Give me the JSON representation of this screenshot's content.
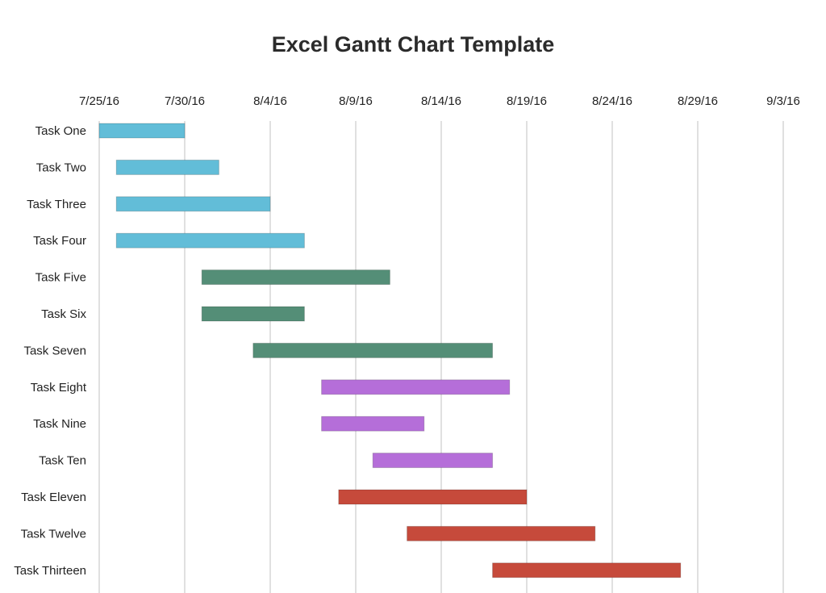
{
  "chart_data": {
    "type": "bar",
    "subtype": "gantt",
    "title": "Excel Gantt Chart Template",
    "x_axis_position": "top",
    "x_ticks": [
      "7/25/16",
      "7/30/16",
      "8/4/16",
      "8/9/16",
      "8/14/16",
      "8/19/16",
      "8/24/16",
      "8/29/16",
      "9/3/16"
    ],
    "xlim": [
      "7/25/16",
      "9/4/16"
    ],
    "grid": true,
    "tasks": [
      {
        "name": "Task One",
        "start": "7/25/16",
        "end": "7/30/16",
        "color": "#62bdd8"
      },
      {
        "name": "Task Two",
        "start": "7/26/16",
        "end": "8/1/16",
        "color": "#62bdd8"
      },
      {
        "name": "Task Three",
        "start": "7/26/16",
        "end": "8/4/16",
        "color": "#62bdd8"
      },
      {
        "name": "Task Four",
        "start": "7/26/16",
        "end": "8/6/16",
        "color": "#62bdd8"
      },
      {
        "name": "Task Five",
        "start": "7/31/16",
        "end": "8/11/16",
        "color": "#548e77"
      },
      {
        "name": "Task Six",
        "start": "7/31/16",
        "end": "8/6/16",
        "color": "#548e77"
      },
      {
        "name": "Task Seven",
        "start": "8/3/16",
        "end": "8/17/16",
        "color": "#548e77"
      },
      {
        "name": "Task Eight",
        "start": "8/7/16",
        "end": "8/18/16",
        "color": "#b56ed9"
      },
      {
        "name": "Task Nine",
        "start": "8/7/16",
        "end": "8/13/16",
        "color": "#b56ed9"
      },
      {
        "name": "Task Ten",
        "start": "8/10/16",
        "end": "8/17/16",
        "color": "#b56ed9"
      },
      {
        "name": "Task Eleven",
        "start": "8/8/16",
        "end": "8/19/16",
        "color": "#c64a3b"
      },
      {
        "name": "Task Twelve",
        "start": "8/12/16",
        "end": "8/23/16",
        "color": "#c64a3b"
      },
      {
        "name": "Task Thirteen",
        "start": "8/17/16",
        "end": "8/28/16",
        "color": "#c64a3b"
      }
    ]
  }
}
